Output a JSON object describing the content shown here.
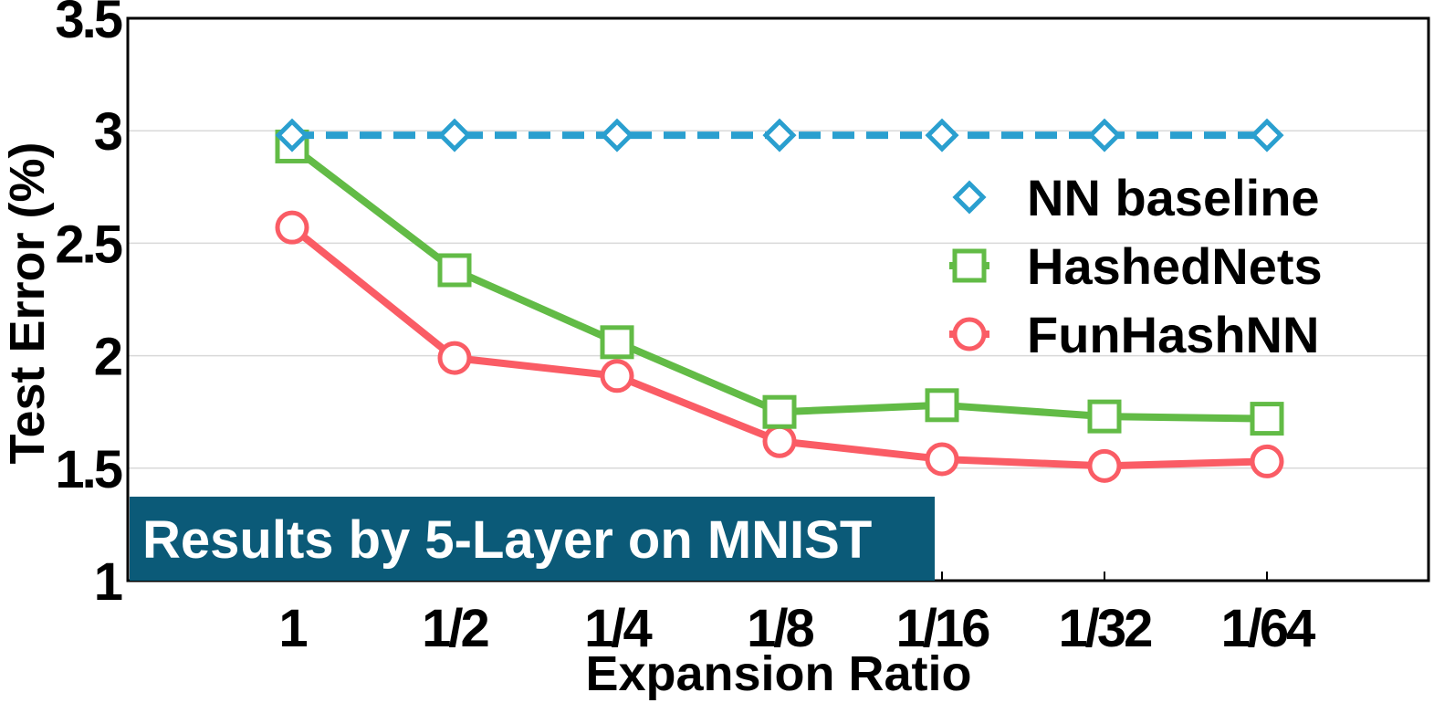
{
  "chart_data": {
    "type": "line",
    "categories": [
      "1",
      "1/2",
      "1/4",
      "1/8",
      "1/16",
      "1/32",
      "1/64"
    ],
    "xlabel": "Expansion Ratio",
    "ylabel": "Test Error (%)",
    "ylim": [
      1,
      3.5
    ],
    "yticks": [
      1,
      1.5,
      2,
      2.5,
      3,
      3.5
    ],
    "ytick_labels": [
      "1",
      "1.5",
      "2",
      "2.5",
      "3",
      "3.5"
    ],
    "grid": "horizontal",
    "legend_position": "right",
    "annotation": "Results by 5-Layer on MNIST",
    "colors": {
      "banner": "#0b5a78",
      "grid": "#d9d9d9"
    },
    "series": [
      {
        "name": "NN baseline",
        "values": [
          2.98,
          2.98,
          2.98,
          2.98,
          2.98,
          2.98,
          2.98
        ],
        "color": "#2a9fcf",
        "marker": "diamond",
        "line": "dashed"
      },
      {
        "name": "HashedNets",
        "values": [
          2.93,
          2.38,
          2.06,
          1.75,
          1.78,
          1.73,
          1.72
        ],
        "color": "#62bb46",
        "marker": "square",
        "line": "solid"
      },
      {
        "name": "FunHashNN",
        "values": [
          2.57,
          1.99,
          1.91,
          1.62,
          1.54,
          1.51,
          1.53
        ],
        "color": "#fa5c65",
        "marker": "circle",
        "line": "solid"
      }
    ]
  }
}
